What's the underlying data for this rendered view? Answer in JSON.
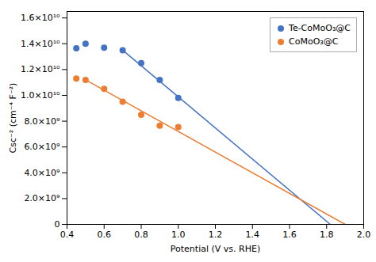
{
  "chart_data": {
    "type": "scatter",
    "xlabel": "Potential (V vs. RHE)",
    "ylabel": "Csc⁻² (cm⁻⁴ F⁻²)",
    "series": [
      {
        "type": "line",
        "color": "#4472C4",
        "x": [
          0.7,
          1.82
        ],
        "values": [
          13500000000.0,
          0.0
        ]
      },
      {
        "name": "Te-CoMoO₃@C",
        "color": "#4472C4",
        "x": [
          0.45,
          0.5,
          0.6,
          0.7,
          0.8,
          0.9,
          1.0
        ],
        "values": [
          13650000000.0,
          14000000000.0,
          13700000000.0,
          13500000000.0,
          12500000000.0,
          11200000000.0,
          9800000000.0
        ]
      },
      {
        "type": "line",
        "color": "#ED7D31",
        "x": [
          0.5,
          1.9
        ],
        "values": [
          11200000000.0,
          0.0
        ]
      },
      {
        "name": "CoMoO₃@C",
        "color": "#ED7D31",
        "x": [
          0.45,
          0.5,
          0.6,
          0.7,
          0.8,
          0.9,
          1.0
        ],
        "values": [
          11300000000.0,
          11200000000.0,
          10500000000.0,
          9500000000.0,
          8500000000.0,
          7650000000.0,
          7550000000.0
        ]
      }
    ],
    "xlim": [
      0.4,
      2.0
    ],
    "ylim": [
      0.0,
      16500000000.0
    ],
    "xticks": [
      0.4,
      0.6,
      0.8,
      {
        "value": 1.0,
        "label": "1.0"
      },
      1.2,
      1.4,
      1.6,
      1.8,
      {
        "value": 2.0,
        "label": "2.0"
      }
    ],
    "yticks": [
      0,
      {
        "value": 2000000000.0,
        "label": "2.0×10⁹"
      },
      {
        "value": 4000000000.0,
        "label": "4.0×10⁹"
      },
      {
        "value": 6000000000.0,
        "label": "6.0×10⁹"
      },
      {
        "value": 8000000000.0,
        "label": "8.0×10⁹"
      },
      {
        "value": 10000000000.0,
        "label": "1.0×10¹⁰"
      },
      {
        "value": 12000000000.0,
        "label": "1.2×10¹⁰"
      },
      {
        "value": 14000000000.0,
        "label": "1.4×10¹⁰"
      },
      {
        "value": 16000000000.0,
        "label": "1.6×10¹⁰"
      }
    ],
    "legend": "upper right"
  }
}
